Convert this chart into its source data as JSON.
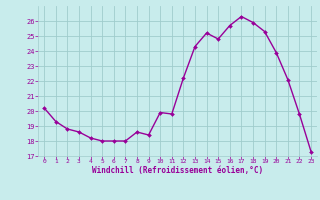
{
  "x": [
    0,
    1,
    2,
    3,
    4,
    5,
    6,
    7,
    8,
    9,
    10,
    11,
    12,
    13,
    14,
    15,
    16,
    17,
    18,
    19,
    20,
    21,
    22,
    23
  ],
  "y": [
    20.2,
    19.3,
    18.8,
    18.6,
    18.2,
    18.0,
    18.0,
    18.0,
    18.6,
    18.4,
    19.9,
    19.8,
    22.2,
    24.3,
    25.2,
    24.8,
    25.7,
    26.3,
    25.9,
    25.3,
    23.9,
    22.1,
    19.8,
    17.3
  ],
  "line_color": "#990099",
  "marker_color": "#990099",
  "bg_color": "#c8ecec",
  "grid_color": "#a0cccc",
  "xlabel": "Windchill (Refroidissement éolien,°C)",
  "xlabel_color": "#990099",
  "xtick_color": "#990099",
  "ytick_color": "#990099",
  "ylim": [
    17,
    27
  ],
  "xlim": [
    -0.5,
    23.5
  ],
  "yticks": [
    17,
    18,
    19,
    20,
    21,
    22,
    23,
    24,
    25,
    26
  ],
  "xticks": [
    0,
    1,
    2,
    3,
    4,
    5,
    6,
    7,
    8,
    9,
    10,
    11,
    12,
    13,
    14,
    15,
    16,
    17,
    18,
    19,
    20,
    21,
    22,
    23
  ],
  "figsize": [
    3.2,
    2.0
  ],
  "dpi": 100
}
